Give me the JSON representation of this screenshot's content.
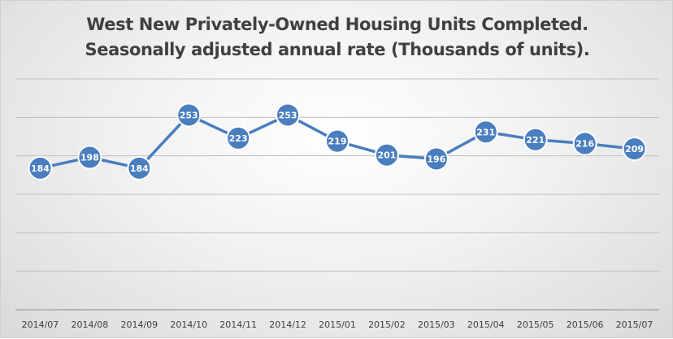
{
  "chart_data": {
    "type": "line",
    "title": "West New Privately-Owned Housing Units Completed.",
    "subtitle": "Seasonally adjusted annual rate (Thousands of units).",
    "categories": [
      "2014/07",
      "2014/08",
      "2014/09",
      "2014/10",
      "2014/11",
      "2014/12",
      "2015/01",
      "2015/02",
      "2015/03",
      "2015/04",
      "2015/05",
      "2015/06",
      "2015/07"
    ],
    "series": [
      {
        "values": [
          184,
          198,
          184,
          253,
          223,
          253,
          219,
          201,
          196,
          231,
          221,
          216,
          209
        ],
        "color": "#4a7ebf"
      }
    ],
    "ylim": [
      0,
      300
    ],
    "ytick_step": 50,
    "y_tick_labels_shown": false,
    "gridlines": true,
    "data_labels": true,
    "legend": "none"
  }
}
